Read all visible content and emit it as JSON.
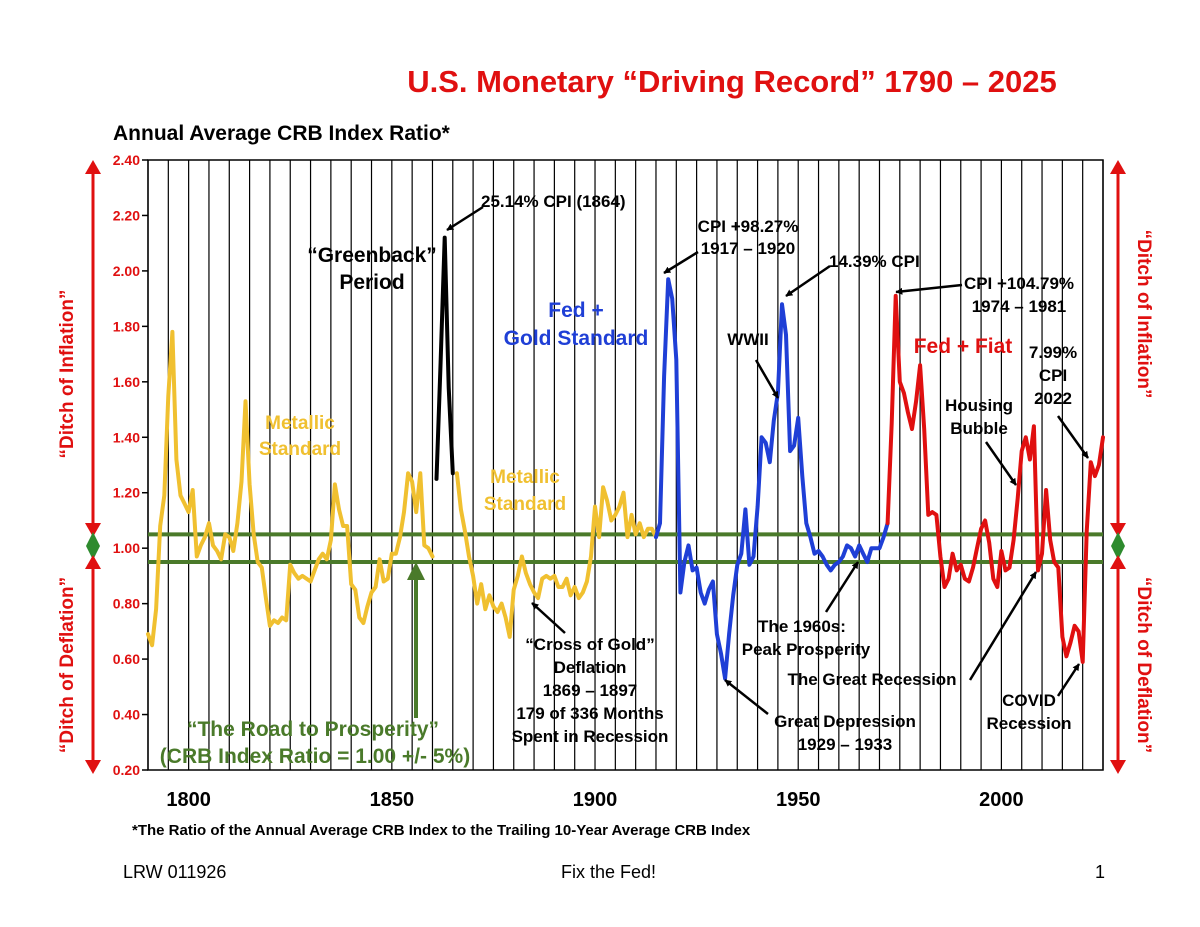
{
  "header": {
    "title": "U.S. Monetary “Driving Record” 1790 – 2025",
    "subtitle": "Annual Average CRB Index Ratio*"
  },
  "footnote": "*The Ratio of the Annual Average CRB Index to the Trailing 10-Year Average CRB Index",
  "footer": {
    "left": "LRW 011926",
    "center": "Fix the Fed!",
    "right": "1"
  },
  "side_labels": {
    "inflation": "“Ditch of Inflation”",
    "deflation": "“Ditch of Deflation”"
  },
  "colors": {
    "title": "#e01010",
    "metallic": "#f0c030",
    "greenback": "#000000",
    "fed_gold": "#1f3fd6",
    "fed_fiat": "#e01010",
    "band": "#4a7a2a",
    "arrows": "#e01010"
  },
  "chart_data": {
    "type": "line",
    "xlim": [
      1790,
      2025
    ],
    "ylim": [
      0.2,
      2.4
    ],
    "x_ticks": [
      1800,
      1850,
      1900,
      1950,
      2000
    ],
    "y_ticks": [
      "0.20",
      "0.40",
      "0.60",
      "0.80",
      "1.00",
      "1.20",
      "1.40",
      "1.60",
      "1.80",
      "2.00",
      "2.20",
      "2.40"
    ],
    "vertical_grid_step": 5,
    "band": {
      "center": 1.0,
      "upper": 1.05,
      "lower": 0.95
    },
    "series": [
      {
        "key": "metallic1",
        "color_key": "metallic",
        "points": [
          [
            1790,
            0.69
          ],
          [
            1791,
            0.65
          ],
          [
            1792,
            0.78
          ],
          [
            1793,
            1.08
          ],
          [
            1794,
            1.19
          ],
          [
            1795,
            1.55
          ],
          [
            1796,
            1.78
          ],
          [
            1797,
            1.32
          ],
          [
            1798,
            1.19
          ],
          [
            1799,
            1.16
          ],
          [
            1800,
            1.13
          ],
          [
            1801,
            1.21
          ],
          [
            1802,
            0.97
          ],
          [
            1803,
            1.01
          ],
          [
            1804,
            1.04
          ],
          [
            1805,
            1.09
          ],
          [
            1806,
            1.01
          ],
          [
            1807,
            0.99
          ],
          [
            1808,
            0.96
          ],
          [
            1809,
            1.05
          ],
          [
            1810,
            1.04
          ],
          [
            1811,
            0.99
          ],
          [
            1812,
            1.09
          ],
          [
            1813,
            1.24
          ],
          [
            1814,
            1.53
          ],
          [
            1815,
            1.23
          ],
          [
            1816,
            1.05
          ],
          [
            1817,
            0.95
          ],
          [
            1818,
            0.93
          ],
          [
            1819,
            0.82
          ],
          [
            1820,
            0.72
          ],
          [
            1821,
            0.74
          ],
          [
            1822,
            0.73
          ],
          [
            1823,
            0.75
          ],
          [
            1824,
            0.74
          ],
          [
            1825,
            0.94
          ],
          [
            1826,
            0.91
          ],
          [
            1827,
            0.89
          ],
          [
            1828,
            0.9
          ],
          [
            1829,
            0.89
          ],
          [
            1830,
            0.88
          ],
          [
            1831,
            0.92
          ],
          [
            1832,
            0.96
          ],
          [
            1833,
            0.98
          ],
          [
            1834,
            0.96
          ],
          [
            1835,
            1.03
          ],
          [
            1836,
            1.23
          ],
          [
            1837,
            1.14
          ],
          [
            1838,
            1.08
          ],
          [
            1839,
            1.08
          ],
          [
            1840,
            0.87
          ],
          [
            1841,
            0.85
          ],
          [
            1842,
            0.75
          ],
          [
            1843,
            0.73
          ],
          [
            1844,
            0.79
          ],
          [
            1845,
            0.84
          ],
          [
            1846,
            0.86
          ],
          [
            1847,
            0.96
          ],
          [
            1848,
            0.88
          ],
          [
            1849,
            0.89
          ],
          [
            1850,
            0.98
          ],
          [
            1851,
            0.98
          ],
          [
            1852,
            1.04
          ],
          [
            1853,
            1.13
          ],
          [
            1854,
            1.27
          ],
          [
            1855,
            1.24
          ],
          [
            1856,
            1.13
          ],
          [
            1857,
            1.27
          ],
          [
            1858,
            1.01
          ],
          [
            1859,
            1.0
          ],
          [
            1860,
            0.97
          ]
        ]
      },
      {
        "key": "greenback",
        "color_key": "greenback",
        "points": [
          [
            1861,
            1.25
          ],
          [
            1862,
            1.67
          ],
          [
            1863,
            2.12
          ],
          [
            1864,
            1.58
          ],
          [
            1865,
            1.27
          ]
        ]
      },
      {
        "key": "metallic2",
        "color_key": "metallic",
        "points": [
          [
            1866,
            1.27
          ],
          [
            1867,
            1.14
          ],
          [
            1868,
            1.06
          ],
          [
            1869,
            0.97
          ],
          [
            1870,
            0.9
          ],
          [
            1871,
            0.8
          ],
          [
            1872,
            0.87
          ],
          [
            1873,
            0.78
          ],
          [
            1874,
            0.83
          ],
          [
            1875,
            0.79
          ],
          [
            1876,
            0.77
          ],
          [
            1877,
            0.8
          ],
          [
            1878,
            0.75
          ],
          [
            1879,
            0.68
          ],
          [
            1880,
            0.85
          ],
          [
            1881,
            0.9
          ],
          [
            1882,
            0.97
          ],
          [
            1883,
            0.91
          ],
          [
            1884,
            0.87
          ],
          [
            1885,
            0.84
          ],
          [
            1886,
            0.82
          ],
          [
            1887,
            0.89
          ],
          [
            1888,
            0.9
          ],
          [
            1889,
            0.89
          ],
          [
            1890,
            0.9
          ],
          [
            1891,
            0.86
          ],
          [
            1892,
            0.86
          ],
          [
            1893,
            0.89
          ],
          [
            1894,
            0.83
          ],
          [
            1895,
            0.86
          ],
          [
            1896,
            0.82
          ],
          [
            1897,
            0.84
          ],
          [
            1898,
            0.88
          ],
          [
            1899,
            0.97
          ],
          [
            1900,
            1.15
          ],
          [
            1901,
            1.04
          ],
          [
            1902,
            1.22
          ],
          [
            1903,
            1.17
          ],
          [
            1904,
            1.1
          ],
          [
            1905,
            1.12
          ],
          [
            1906,
            1.15
          ],
          [
            1907,
            1.2
          ],
          [
            1908,
            1.04
          ],
          [
            1909,
            1.12
          ],
          [
            1910,
            1.05
          ],
          [
            1911,
            1.09
          ],
          [
            1912,
            1.04
          ],
          [
            1913,
            1.07
          ],
          [
            1914,
            1.07
          ],
          [
            1915,
            1.04
          ]
        ]
      },
      {
        "key": "fed_gold",
        "color_key": "fed_gold",
        "points": [
          [
            1915,
            1.04
          ],
          [
            1916,
            1.09
          ],
          [
            1917,
            1.62
          ],
          [
            1918,
            1.97
          ],
          [
            1919,
            1.9
          ],
          [
            1920,
            1.68
          ],
          [
            1921,
            0.84
          ],
          [
            1922,
            0.95
          ],
          [
            1923,
            1.01
          ],
          [
            1924,
            0.92
          ],
          [
            1925,
            0.93
          ],
          [
            1926,
            0.84
          ],
          [
            1927,
            0.8
          ],
          [
            1928,
            0.85
          ],
          [
            1929,
            0.88
          ],
          [
            1930,
            0.69
          ],
          [
            1931,
            0.62
          ],
          [
            1932,
            0.53
          ],
          [
            1933,
            0.69
          ],
          [
            1934,
            0.83
          ],
          [
            1935,
            0.94
          ],
          [
            1936,
            0.98
          ],
          [
            1937,
            1.14
          ],
          [
            1938,
            0.94
          ],
          [
            1939,
            0.97
          ],
          [
            1940,
            1.15
          ],
          [
            1941,
            1.4
          ],
          [
            1942,
            1.38
          ],
          [
            1943,
            1.31
          ],
          [
            1944,
            1.46
          ],
          [
            1945,
            1.56
          ],
          [
            1946,
            1.88
          ],
          [
            1947,
            1.77
          ],
          [
            1948,
            1.35
          ],
          [
            1949,
            1.37
          ],
          [
            1950,
            1.47
          ],
          [
            1951,
            1.26
          ],
          [
            1952,
            1.09
          ],
          [
            1953,
            1.04
          ],
          [
            1954,
            0.98
          ],
          [
            1955,
            0.99
          ],
          [
            1956,
            0.97
          ],
          [
            1957,
            0.94
          ],
          [
            1958,
            0.92
          ],
          [
            1959,
            0.94
          ],
          [
            1960,
            0.95
          ],
          [
            1961,
            0.97
          ],
          [
            1962,
            1.01
          ],
          [
            1963,
            1.0
          ],
          [
            1964,
            0.97
          ],
          [
            1965,
            1.01
          ],
          [
            1966,
            0.98
          ],
          [
            1967,
            0.95
          ],
          [
            1968,
            1.0
          ],
          [
            1969,
            1.0
          ],
          [
            1970,
            1.0
          ],
          [
            1971,
            1.04
          ],
          [
            1972,
            1.09
          ]
        ]
      },
      {
        "key": "fed_fiat",
        "color_key": "fed_fiat",
        "points": [
          [
            1972,
            1.09
          ],
          [
            1973,
            1.45
          ],
          [
            1974,
            1.91
          ],
          [
            1975,
            1.6
          ],
          [
            1976,
            1.56
          ],
          [
            1977,
            1.49
          ],
          [
            1978,
            1.43
          ],
          [
            1979,
            1.53
          ],
          [
            1980,
            1.66
          ],
          [
            1981,
            1.43
          ],
          [
            1982,
            1.12
          ],
          [
            1983,
            1.13
          ],
          [
            1984,
            1.12
          ],
          [
            1985,
            0.97
          ],
          [
            1986,
            0.86
          ],
          [
            1987,
            0.89
          ],
          [
            1988,
            0.98
          ],
          [
            1989,
            0.92
          ],
          [
            1990,
            0.94
          ],
          [
            1991,
            0.89
          ],
          [
            1992,
            0.88
          ],
          [
            1993,
            0.93
          ],
          [
            1994,
            1.0
          ],
          [
            1995,
            1.07
          ],
          [
            1996,
            1.1
          ],
          [
            1997,
            1.02
          ],
          [
            1998,
            0.89
          ],
          [
            1999,
            0.86
          ],
          [
            2000,
            0.99
          ],
          [
            2001,
            0.92
          ],
          [
            2002,
            0.93
          ],
          [
            2003,
            1.03
          ],
          [
            2004,
            1.18
          ],
          [
            2005,
            1.35
          ],
          [
            2006,
            1.4
          ],
          [
            2007,
            1.32
          ],
          [
            2008,
            1.44
          ],
          [
            2009,
            0.92
          ],
          [
            2010,
            0.98
          ],
          [
            2011,
            1.21
          ],
          [
            2012,
            1.03
          ],
          [
            2013,
            0.95
          ],
          [
            2014,
            0.93
          ],
          [
            2015,
            0.68
          ],
          [
            2016,
            0.61
          ],
          [
            2017,
            0.66
          ],
          [
            2018,
            0.72
          ],
          [
            2019,
            0.7
          ],
          [
            2020,
            0.59
          ],
          [
            2021,
            1.06
          ],
          [
            2022,
            1.31
          ],
          [
            2023,
            1.26
          ],
          [
            2024,
            1.3
          ],
          [
            2025,
            1.4
          ]
        ]
      }
    ],
    "labels": {
      "cpi_1864": "25.14% CPI (1864)",
      "greenback_1": "“Greenback”",
      "greenback_2": "Period",
      "metallic1_1": "Metallic",
      "metallic1_2": "Standard",
      "metallic2_1": "Metallic",
      "metallic2_2": "Standard",
      "fedgold_1": "Fed +",
      "fedgold_2": "Gold Standard",
      "cpi_1917_1": "CPI +98.27%",
      "cpi_1917_2": "1917 – 1920",
      "cpi_1439": "14.39% CPI",
      "wwii": "WWII",
      "cpi_1974_1": "CPI +104.79%",
      "cpi_1974_2": "1974 – 1981",
      "fedfiat": "Fed + Fiat",
      "cpi_2022_1": "7.99%",
      "cpi_2022_2": "CPI",
      "cpi_2022_3": "2022",
      "housing_1": "Housing",
      "housing_2": "Bubble",
      "cross_1": "“Cross of Gold”",
      "cross_2": "Deflation",
      "cross_3": "1869 – 1897",
      "cross_4": "179 of 336 Months",
      "cross_5": "Spent in Recession",
      "sixties_1": "The 1960s:",
      "sixties_2": "Peak Prosperity",
      "great_recession": "The Great Recession",
      "covid_1": "COVID",
      "covid_2": "Recession",
      "depression_1": "Great Depression",
      "depression_2": "1929 – 1933",
      "road_1": "“The Road to Prosperity”",
      "road_2": "(CRB Index Ratio = 1.00 +/- 5%)"
    }
  }
}
